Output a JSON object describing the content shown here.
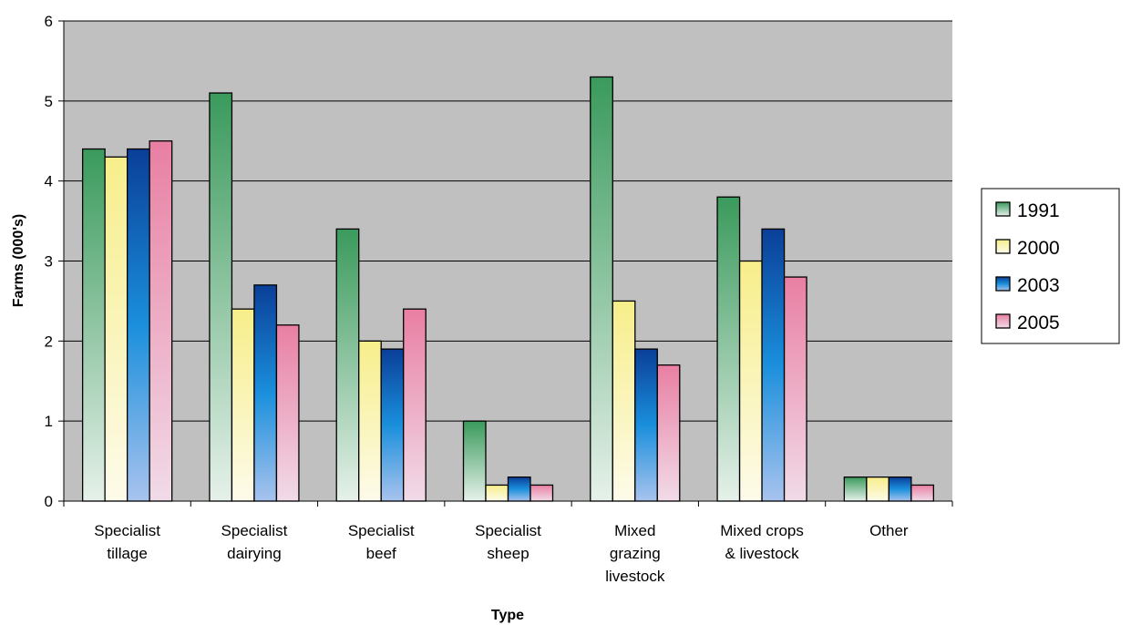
{
  "chart_data": {
    "type": "bar",
    "title": "",
    "xlabel": "Type",
    "ylabel": "Farms (000's)",
    "ylim": [
      0,
      6
    ],
    "yticks": [
      0,
      1,
      2,
      3,
      4,
      5,
      6
    ],
    "grid": true,
    "legend_position": "right",
    "categories": [
      [
        "Specialist",
        "tillage"
      ],
      [
        "Specialist",
        "dairying"
      ],
      [
        "Specialist",
        "beef"
      ],
      [
        "Specialist",
        "sheep"
      ],
      [
        "Mixed",
        "grazing",
        "livestock"
      ],
      [
        "Mixed crops",
        "& livestock"
      ],
      [
        "Other"
      ]
    ],
    "series": [
      {
        "name": "1991",
        "values": [
          4.4,
          5.1,
          3.4,
          1.0,
          5.3,
          3.8,
          0.3
        ]
      },
      {
        "name": "2000",
        "values": [
          4.3,
          2.4,
          2.0,
          0.2,
          2.5,
          3.0,
          0.3
        ]
      },
      {
        "name": "2003",
        "values": [
          4.4,
          2.7,
          1.9,
          0.3,
          1.9,
          3.4,
          0.3
        ]
      },
      {
        "name": "2005",
        "values": [
          4.5,
          2.2,
          2.4,
          0.2,
          1.7,
          2.8,
          0.2
        ]
      }
    ],
    "colors": {
      "plot_background": "#c0c0c0",
      "gridline": "#000000",
      "series": [
        {
          "top": "#3a9a5c",
          "bottom": "#e6f1ea"
        },
        {
          "top": "#f7ee8a",
          "bottom": "#fdfbea"
        },
        {
          "top": "#0a3f98",
          "mid": "#1a8fdc",
          "bottom": "#a8c3ee"
        },
        {
          "top": "#e97fa3",
          "bottom": "#f1dbe8"
        }
      ]
    }
  }
}
